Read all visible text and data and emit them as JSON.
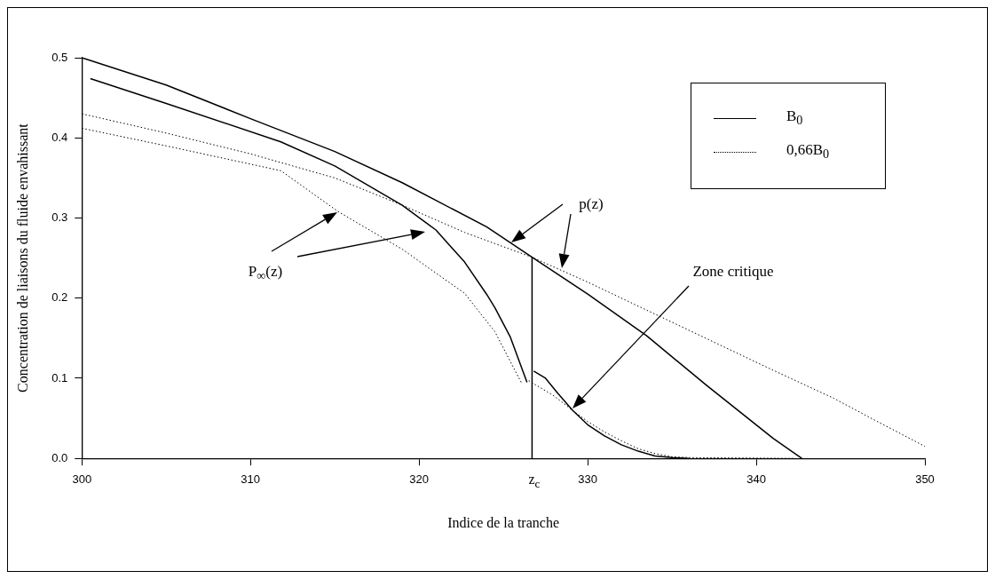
{
  "chart_data": {
    "type": "line",
    "xlabel": "Indice de la tranche",
    "ylabel": "Concentration de liaisons du fluide envahissant",
    "xlim": [
      300,
      350
    ],
    "xticks": [
      300,
      310,
      320,
      330,
      340,
      350
    ],
    "ylim": [
      0,
      0.5
    ],
    "yticks": [
      {
        "value": 0,
        "label": "0.0"
      },
      0.1,
      0.2,
      0.3,
      0.4,
      0.5
    ],
    "grid": false,
    "legend": "top right",
    "series": [
      {
        "name": "B$_{0}$",
        "color": "#000000",
        "line_style": "solid",
        "x": [
          300,
          305,
          310,
          315,
          319,
          324,
          326.7,
          330,
          333.5,
          337,
          341,
          342.7
        ],
        "values": [
          0.5,
          0.466,
          0.424,
          0.383,
          0.344,
          0.289,
          0.251,
          0.205,
          0.153,
          0.092,
          0.025,
          0
        ]
      },
      {
        "color": "#000000",
        "line_style": "solid",
        "x": [
          300.5,
          305,
          311.8,
          315,
          319,
          321,
          322.7,
          324,
          324.5,
          325.4,
          326.4
        ],
        "values": [
          0.474,
          0.443,
          0.395,
          0.365,
          0.316,
          0.285,
          0.245,
          0.205,
          0.188,
          0.152,
          0.095
        ]
      },
      {
        "color": "#000000",
        "line_style": "solid",
        "x": [
          326.8,
          327.5,
          328.2,
          329.1,
          330,
          331,
          332,
          333,
          334,
          335,
          336
        ],
        "values": [
          0.109,
          0.1,
          0.082,
          0.06,
          0.042,
          0.028,
          0.017,
          0.009,
          0.003,
          0.001,
          0
        ]
      },
      {
        "color": "#000000",
        "line_style": "solid",
        "x": [
          326.7,
          326.7
        ],
        "values": [
          0,
          0.251
        ]
      },
      {
        "name": "0,66B$_{0}$",
        "color": "#000000",
        "line_style": "dotted",
        "x": [
          300,
          305,
          310,
          315,
          319,
          322.7,
          326.7,
          330,
          333.6,
          337,
          341,
          344.6,
          347,
          350
        ],
        "values": [
          0.43,
          0.406,
          0.38,
          0.35,
          0.316,
          0.282,
          0.251,
          0.22,
          0.184,
          0.15,
          0.11,
          0.075,
          0.048,
          0.015
        ]
      },
      {
        "color": "#000000",
        "line_style": "dotted",
        "x": [
          300,
          305,
          311.8,
          315.2,
          319,
          322.7,
          324.5,
          326.1
        ],
        "values": [
          0.412,
          0.39,
          0.359,
          0.308,
          0.261,
          0.206,
          0.158,
          0.093
        ]
      },
      {
        "color": "#000000",
        "line_style": "dotted",
        "x": [
          326.5,
          328,
          329.1,
          330,
          331,
          332,
          333,
          334,
          335,
          336,
          342.2
        ],
        "values": [
          0.097,
          0.078,
          0.06,
          0.046,
          0.033,
          0.022,
          0.012,
          0.006,
          0.002,
          0.001,
          0
        ]
      }
    ],
    "annotations": [
      "P$_{∞}$(z)",
      "p(z)",
      "Zone critique",
      "z$_{c}$"
    ]
  }
}
